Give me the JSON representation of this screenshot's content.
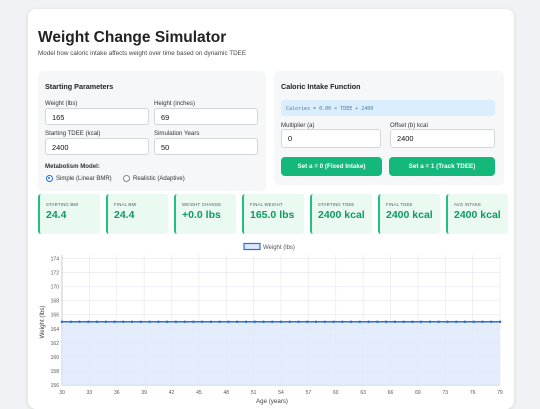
{
  "app": {
    "title": "Weight Change Simulator",
    "subtitle": "Model how caloric intake affects weight over time based on dynamic TDEE"
  },
  "starting": {
    "heading": "Starting Parameters",
    "weight_label": "Weight (lbs)",
    "weight_value": "165",
    "height_label": "Height (inches)",
    "height_value": "69",
    "tdee_label": "Starting TDEE (kcal)",
    "tdee_value": "2400",
    "years_label": "Simulation Years",
    "years_value": "50",
    "model_label": "Metabolism Model:",
    "model_options": [
      {
        "label": "Simple (Linear BMR)",
        "selected": true
      },
      {
        "label": "Realistic (Adaptive)",
        "selected": false
      }
    ]
  },
  "caloric": {
    "heading": "Caloric Intake Function",
    "formula": "Calories = 0.00 × TDEE + 2400",
    "multiplier_label": "Multiplier (a)",
    "multiplier_value": "0",
    "offset_label": "Offset (b) kcal",
    "offset_value": "2400",
    "btn_fixed": "Set a = 0 (Fixed Intake)",
    "btn_track": "Set a = 1 (Track TDEE)"
  },
  "stats": [
    {
      "label": "Starting BMI",
      "value": "24.4"
    },
    {
      "label": "Final BMI",
      "value": "24.4"
    },
    {
      "label": "Weight Change",
      "value": "+0.0 lbs"
    },
    {
      "label": "Final Weight",
      "value": "165.0 lbs"
    },
    {
      "label": "Starting TDEE",
      "value": "2400 kcal"
    },
    {
      "label": "Final TDEE",
      "value": "2400 kcal"
    },
    {
      "label": "Avg Intake",
      "value": "2400 kcal"
    }
  ],
  "colors": {
    "accent": "#1e6ee8",
    "green": "#14b87a",
    "line": "#2f6fd6",
    "fill": "#dde8fb"
  },
  "chart_data": {
    "type": "line",
    "legend": "Weight (lbs)",
    "xlabel": "Age (years)",
    "ylabel": "Weight (lbs)",
    "x_ticks": [
      30,
      33,
      36,
      39,
      42,
      45,
      48,
      51,
      54,
      57,
      60,
      63,
      66,
      69,
      73,
      76,
      79
    ],
    "y_ticks": [
      156,
      158,
      160,
      162,
      164,
      166,
      168,
      170,
      172,
      174
    ],
    "ylim": [
      156,
      174.5
    ],
    "xlim": [
      30,
      80
    ],
    "series": [
      {
        "name": "Weight (lbs)",
        "x_start": 30,
        "x_end": 80,
        "y_constant": 165,
        "points": 51
      }
    ]
  }
}
